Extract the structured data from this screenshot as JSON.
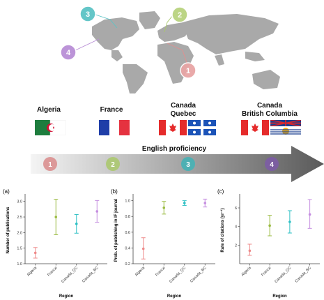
{
  "map": {
    "markers": [
      {
        "number": "1",
        "color": "#e8a5a5"
      },
      {
        "number": "2",
        "color": "#b9d37f"
      },
      {
        "number": "3",
        "color": "#5cc4c6"
      },
      {
        "number": "4",
        "color": "#b98fd6"
      }
    ]
  },
  "regions": [
    {
      "name": "Algeria",
      "sub": ""
    },
    {
      "name": "France",
      "sub": ""
    },
    {
      "name": "Canada",
      "sub": "Quebec"
    },
    {
      "name": "Canada",
      "sub": "British Columbia"
    }
  ],
  "scale": {
    "title": "English proficiency",
    "steps": [
      {
        "number": "1",
        "color": "#d98b8b"
      },
      {
        "number": "2",
        "color": "#a9c86a"
      },
      {
        "number": "3",
        "color": "#3fb3b6"
      },
      {
        "number": "4",
        "color": "#7d5aa8"
      }
    ]
  },
  "colors": {
    "Algeria": "#ee8a8a",
    "France": "#9bbb42",
    "Canada_QC": "#2ec0c4",
    "Canada_BC": "#c58ee0"
  },
  "chart_data": [
    {
      "type": "errorbar",
      "panel": "(a)",
      "xlabel": "Region",
      "ylabel": "Number of publications",
      "categories": [
        "Algeria",
        "France",
        "Canada_QC",
        "Canada_BC"
      ],
      "values": [
        1.35,
        2.5,
        2.28,
        2.68
      ],
      "lower": [
        1.18,
        1.93,
        1.98,
        2.33
      ],
      "upper": [
        1.52,
        3.07,
        2.58,
        3.03
      ],
      "ylim": [
        1.0,
        3.15
      ],
      "yticks": [
        1.0,
        1.5,
        2.0,
        2.5,
        3.0
      ],
      "ytick_labels": [
        "1.0",
        "1.5",
        "2.0",
        "2.5",
        "3.0"
      ]
    },
    {
      "type": "errorbar",
      "panel": "(b)",
      "xlabel": "Region",
      "ylabel": "Prob. of publishing in IF journal",
      "categories": [
        "Algeria",
        "France",
        "Canada_QC",
        "Canada_BC"
      ],
      "values": [
        0.39,
        0.91,
        0.97,
        0.97
      ],
      "lower": [
        0.26,
        0.83,
        0.94,
        0.92
      ],
      "upper": [
        0.53,
        0.99,
        1.0,
        1.02
      ],
      "ylim": [
        0.2,
        1.05
      ],
      "yticks": [
        0.2,
        0.4,
        0.6,
        0.8,
        1.0
      ],
      "ytick_labels": [
        "0.2",
        "0.4",
        "0.6",
        "0.8",
        "1.0"
      ]
    },
    {
      "type": "errorbar",
      "panel": "(c)",
      "xlabel": "Region",
      "ylabel": "Rate of citations (yr⁻¹)",
      "categories": [
        "Algeria",
        "France",
        "Canada_QC",
        "Canada_BC"
      ],
      "values": [
        1.4,
        4.1,
        4.5,
        5.3
      ],
      "lower": [
        0.9,
        3.0,
        3.3,
        3.8
      ],
      "upper": [
        2.1,
        5.2,
        5.7,
        6.9
      ],
      "ylim": [
        0,
        7.2
      ],
      "yticks": [
        2,
        4,
        6
      ],
      "ytick_labels": [
        "2",
        "4",
        "6"
      ]
    }
  ]
}
